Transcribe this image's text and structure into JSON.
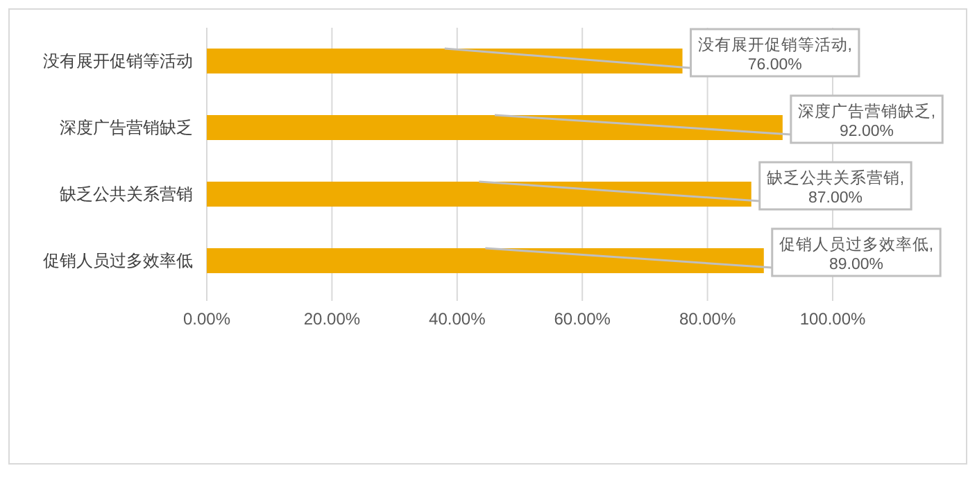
{
  "chart_data": {
    "type": "bar",
    "orientation": "horizontal",
    "categories": [
      "没有展开促销等活动",
      "深度广告营销缺乏",
      "缺乏公共关系营销",
      "促销人员过多效率低"
    ],
    "values": [
      76,
      92,
      87,
      89
    ],
    "color": "#f0ab00",
    "value_labels": [
      "没有展开促销等活动,\n76.00%",
      "深度广告营销缺乏,\n92.00%",
      "缺乏公共关系营销,\n87.00%",
      "促销人员过多效率低,\n89.00%"
    ],
    "xlim": [
      0,
      100
    ],
    "xticks": [
      {
        "value": 0,
        "label": "0.00%"
      },
      {
        "value": 20,
        "label": "20.00%"
      },
      {
        "value": 40,
        "label": "40.00%"
      },
      {
        "value": 60,
        "label": "60.00%"
      },
      {
        "value": 80,
        "label": "80.00%"
      },
      {
        "value": 100,
        "label": "100.00%"
      }
    ],
    "grid": "x"
  }
}
